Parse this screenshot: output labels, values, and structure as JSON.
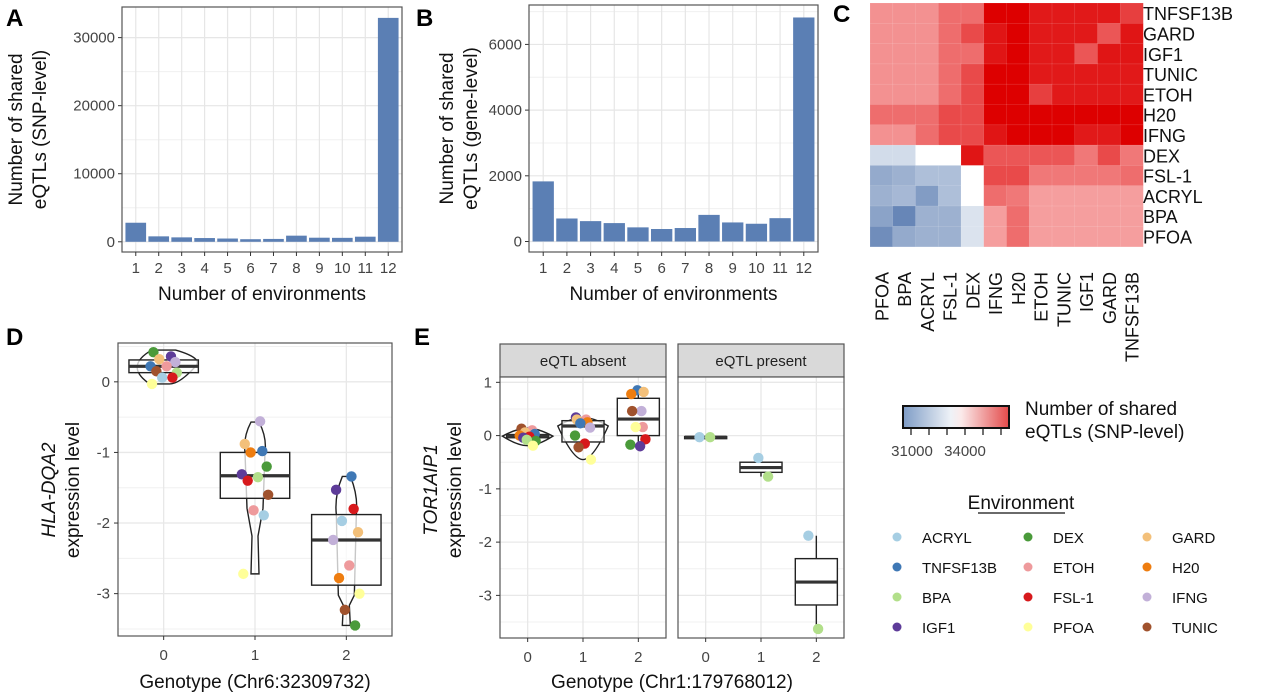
{
  "panels": {
    "A": "A",
    "B": "B",
    "C": "C",
    "D": "D",
    "E": "E"
  },
  "chart_data": [
    {
      "id": "A",
      "type": "bar",
      "title": "",
      "xlabel": "Number of environments",
      "ylabel_lines": [
        "Number of shared",
        "eQTLs (SNP-level)"
      ],
      "categories": [
        "1",
        "2",
        "3",
        "4",
        "5",
        "6",
        "7",
        "8",
        "9",
        "10",
        "11",
        "12"
      ],
      "values": [
        2800,
        800,
        650,
        550,
        480,
        380,
        420,
        900,
        600,
        580,
        750,
        32900
      ],
      "ylim": [
        -1500,
        34500
      ],
      "yticks": [
        0,
        10000,
        20000,
        30000
      ],
      "ytick_labels": [
        "0",
        "10000",
        "20000",
        "30000"
      ],
      "grid": true,
      "bar_color": "#5b7fb4"
    },
    {
      "id": "B",
      "type": "bar",
      "title": "",
      "xlabel": "Number of environments",
      "ylabel_lines": [
        "Number of shared",
        "eQTLs (gene-level)"
      ],
      "categories": [
        "1",
        "2",
        "3",
        "4",
        "5",
        "6",
        "7",
        "8",
        "9",
        "10",
        "11",
        "12"
      ],
      "values": [
        1830,
        700,
        620,
        560,
        430,
        380,
        410,
        810,
        580,
        540,
        710,
        6820
      ],
      "ylim": [
        -320,
        7200
      ],
      "yticks": [
        0,
        2000,
        4000,
        6000
      ],
      "ytick_labels": [
        "0",
        "2000",
        "4000",
        "6000"
      ],
      "grid": true,
      "bar_color": "#5b7fb4"
    },
    {
      "id": "C",
      "type": "heatmap",
      "title": "",
      "row_labels": [
        "TNFSF13B",
        "GARD",
        "IGF1",
        "TUNIC",
        "ETOH",
        "H20",
        "IFNG",
        "DEX",
        "FSL-1",
        "ACRYL",
        "BPA",
        "PFOA"
      ],
      "col_labels": [
        "PFOA",
        "BPA",
        "ACRYL",
        "FSL-1",
        "DEX",
        "IFNG",
        "H20",
        "ETOH",
        "TUNIC",
        "IGF1",
        "GARD",
        "TNFSF13B"
      ],
      "scale": "diverging: blue (low) - white - red (high)",
      "values_level": [
        [
          0.35,
          0.35,
          0.35,
          0.5,
          0.5,
          1.0,
          1.0,
          0.88,
          0.88,
          0.88,
          0.88,
          0.7
        ],
        [
          0.35,
          0.35,
          0.35,
          0.5,
          0.65,
          0.9,
          1.0,
          0.88,
          0.88,
          0.88,
          0.6,
          0.9
        ],
        [
          0.35,
          0.35,
          0.35,
          0.5,
          0.5,
          0.9,
          1.0,
          0.88,
          0.88,
          0.6,
          0.9,
          0.9
        ],
        [
          0.35,
          0.35,
          0.35,
          0.5,
          0.65,
          1.0,
          1.0,
          0.88,
          0.88,
          0.88,
          0.88,
          0.88
        ],
        [
          0.35,
          0.35,
          0.35,
          0.5,
          0.65,
          1.0,
          1.0,
          0.7,
          0.88,
          0.88,
          0.88,
          0.88
        ],
        [
          0.5,
          0.5,
          0.5,
          0.65,
          0.65,
          1.0,
          1.0,
          1.0,
          1.0,
          1.0,
          1.0,
          1.0
        ],
        [
          0.35,
          0.35,
          0.5,
          0.65,
          0.65,
          0.9,
          1.0,
          1.0,
          1.0,
          0.88,
          0.88,
          1.0
        ],
        [
          -0.25,
          -0.25,
          0,
          0,
          0.9,
          0.6,
          0.6,
          0.6,
          0.6,
          0.45,
          0.65,
          0.45
        ],
        [
          -0.6,
          -0.55,
          -0.45,
          -0.45,
          0,
          0.65,
          0.65,
          0.45,
          0.45,
          0.45,
          0.45,
          0.5
        ],
        [
          -0.55,
          -0.5,
          -0.7,
          -0.45,
          0,
          0.5,
          0.45,
          0.3,
          0.3,
          0.3,
          0.3,
          0.3
        ],
        [
          -0.65,
          -0.85,
          -0.55,
          -0.55,
          -0.2,
          0.3,
          0.5,
          0.3,
          0.3,
          0.3,
          0.3,
          0.3
        ],
        [
          -0.8,
          -0.6,
          -0.55,
          -0.55,
          -0.2,
          0.3,
          0.5,
          0.3,
          0.3,
          0.3,
          0.3,
          0.3
        ]
      ],
      "colorbar": {
        "title_lines": [
          "Number of shared",
          "eQTLs (SNP-level)"
        ],
        "tick_labels": [
          "31000",
          "34000"
        ]
      }
    },
    {
      "id": "D",
      "type": "scatter",
      "subtype": "violin+box+jitter",
      "xlabel": "Genotype (Chr6:32309732)",
      "ylabel_italic": "HLA-DQA2",
      "ylabel_plain": "expression level",
      "categories": [
        "0",
        "1",
        "2"
      ],
      "ylim": [
        -3.6,
        0.55
      ],
      "yticks": [
        0,
        -1,
        -2,
        -3
      ],
      "ytick_labels": [
        "0",
        "-1",
        "-2",
        "-3"
      ],
      "boxes": [
        {
          "x": "0",
          "q1": 0.13,
          "median": 0.22,
          "q3": 0.31,
          "min": -0.03,
          "max": 0.45
        },
        {
          "x": "1",
          "q1": -1.65,
          "median": -1.33,
          "q3": -1.0,
          "min": -2.72,
          "max": -0.57
        },
        {
          "x": "2",
          "q1": -2.88,
          "median": -2.24,
          "q3": -1.88,
          "min": -3.45,
          "max": -1.34
        }
      ],
      "points": [
        {
          "x": "0",
          "env": "DEX",
          "y": 0.42
        },
        {
          "x": "0",
          "env": "IGF1",
          "y": 0.36
        },
        {
          "x": "0",
          "env": "GARD",
          "y": 0.32
        },
        {
          "x": "0",
          "env": "IFNG",
          "y": 0.28
        },
        {
          "x": "0",
          "env": "TNFSF13B",
          "y": 0.22
        },
        {
          "x": "0",
          "env": "ETOH",
          "y": 0.22
        },
        {
          "x": "0",
          "env": "TUNIC",
          "y": 0.15
        },
        {
          "x": "0",
          "env": "BPA",
          "y": 0.13
        },
        {
          "x": "0",
          "env": "ACRYL",
          "y": 0.06
        },
        {
          "x": "0",
          "env": "FSL-1",
          "y": 0.06
        },
        {
          "x": "0",
          "env": "PFOA",
          "y": -0.03
        },
        {
          "x": "1",
          "env": "IFNG",
          "y": -0.56
        },
        {
          "x": "1",
          "env": "GARD",
          "y": -0.88
        },
        {
          "x": "1",
          "env": "TNFSF13B",
          "y": -0.98
        },
        {
          "x": "1",
          "env": "H20",
          "y": -1.0
        },
        {
          "x": "1",
          "env": "DEX",
          "y": -1.2
        },
        {
          "x": "1",
          "env": "IGF1",
          "y": -1.31
        },
        {
          "x": "1",
          "env": "BPA",
          "y": -1.35
        },
        {
          "x": "1",
          "env": "FSL-1",
          "y": -1.4
        },
        {
          "x": "1",
          "env": "TUNIC",
          "y": -1.6
        },
        {
          "x": "1",
          "env": "ETOH",
          "y": -1.82
        },
        {
          "x": "1",
          "env": "ACRYL",
          "y": -1.89
        },
        {
          "x": "1",
          "env": "PFOA",
          "y": -2.72
        },
        {
          "x": "2",
          "env": "TNFSF13B",
          "y": -1.34
        },
        {
          "x": "2",
          "env": "IGF1",
          "y": -1.53
        },
        {
          "x": "2",
          "env": "FSL-1",
          "y": -1.8
        },
        {
          "x": "2",
          "env": "ACRYL",
          "y": -1.97
        },
        {
          "x": "2",
          "env": "GARD",
          "y": -2.13
        },
        {
          "x": "2",
          "env": "IFNG",
          "y": -2.24
        },
        {
          "x": "2",
          "env": "ETOH",
          "y": -2.6
        },
        {
          "x": "2",
          "env": "H20",
          "y": -2.78
        },
        {
          "x": "2",
          "env": "PFOA",
          "y": -3.0
        },
        {
          "x": "2",
          "env": "TUNIC",
          "y": -3.23
        },
        {
          "x": "2",
          "env": "DEX",
          "y": -3.45
        }
      ]
    },
    {
      "id": "E",
      "type": "scatter",
      "subtype": "faceted box+jitter",
      "xlabel": "Genotype (Chr1:179768012)",
      "ylabel_italic": "TOR1AIP1",
      "ylabel_plain": "expression level",
      "categories": [
        "0",
        "1",
        "2"
      ],
      "ylim": [
        -3.8,
        1.1
      ],
      "yticks": [
        1,
        0,
        -1,
        -2,
        -3
      ],
      "ytick_labels": [
        "1",
        "0",
        "-1",
        "-2",
        "-3"
      ],
      "facets": [
        {
          "label": "eQTL absent",
          "boxes": [
            {
              "x": "0",
              "q1": -0.04,
              "median": -0.01,
              "q3": 0.02,
              "min": -0.19,
              "max": 0.14,
              "violin": true
            },
            {
              "x": "1",
              "q1": -0.12,
              "median": 0.18,
              "q3": 0.28,
              "min": -0.45,
              "max": 0.34,
              "violin": true
            },
            {
              "x": "2",
              "q1": 0.0,
              "median": 0.31,
              "q3": 0.7,
              "min": -0.2,
              "max": 0.85
            }
          ],
          "points": [
            {
              "x": "0",
              "env": "TUNIC",
              "y": 0.13
            },
            {
              "x": "0",
              "env": "ETOH",
              "y": 0.1
            },
            {
              "x": "0",
              "env": "GARD",
              "y": 0.06
            },
            {
              "x": "0",
              "env": "TNFSF13B",
              "y": 0.03
            },
            {
              "x": "0",
              "env": "H20",
              "y": 0.0
            },
            {
              "x": "0",
              "env": "FSL-1",
              "y": -0.02
            },
            {
              "x": "0",
              "env": "IGF1",
              "y": -0.04
            },
            {
              "x": "0",
              "env": "DEX",
              "y": -0.1
            },
            {
              "x": "0",
              "env": "BPA",
              "y": -0.08
            },
            {
              "x": "0",
              "env": "PFOA",
              "y": -0.19
            },
            {
              "x": "1",
              "env": "IGF1",
              "y": 0.34
            },
            {
              "x": "1",
              "env": "ETOH",
              "y": 0.3
            },
            {
              "x": "1",
              "env": "GARD",
              "y": 0.3
            },
            {
              "x": "1",
              "env": "H20",
              "y": 0.25
            },
            {
              "x": "1",
              "env": "TNFSF13B",
              "y": 0.23
            },
            {
              "x": "1",
              "env": "IFNG",
              "y": 0.15
            },
            {
              "x": "1",
              "env": "DEX",
              "y": 0.0
            },
            {
              "x": "1",
              "env": "FSL-1",
              "y": -0.15
            },
            {
              "x": "1",
              "env": "TUNIC",
              "y": -0.22
            },
            {
              "x": "1",
              "env": "PFOA",
              "y": -0.45
            },
            {
              "x": "2",
              "env": "TNFSF13B",
              "y": 0.85
            },
            {
              "x": "2",
              "env": "GARD",
              "y": 0.82
            },
            {
              "x": "2",
              "env": "H20",
              "y": 0.78
            },
            {
              "x": "2",
              "env": "IFNG",
              "y": 0.46
            },
            {
              "x": "2",
              "env": "TUNIC",
              "y": 0.46
            },
            {
              "x": "2",
              "env": "ETOH",
              "y": 0.16
            },
            {
              "x": "2",
              "env": "PFOA",
              "y": 0.16
            },
            {
              "x": "2",
              "env": "FSL-1",
              "y": -0.07
            },
            {
              "x": "2",
              "env": "DEX",
              "y": -0.17
            },
            {
              "x": "2",
              "env": "IGF1",
              "y": -0.2
            }
          ]
        },
        {
          "label": "eQTL present",
          "boxes": [
            {
              "x": "0",
              "q1": -0.04,
              "median": -0.03,
              "q3": -0.02,
              "min": -0.04,
              "max": -0.02
            },
            {
              "x": "1",
              "q1": -0.69,
              "median": -0.6,
              "q3": -0.5,
              "min": -0.77,
              "max": -0.42
            },
            {
              "x": "2",
              "q1": -3.18,
              "median": -2.75,
              "q3": -2.31,
              "min": -3.63,
              "max": -1.88
            }
          ],
          "points": [
            {
              "x": "0",
              "env": "ACRYL",
              "y": -0.03
            },
            {
              "x": "0",
              "env": "BPA",
              "y": -0.03
            },
            {
              "x": "1",
              "env": "ACRYL",
              "y": -0.42
            },
            {
              "x": "1",
              "env": "BPA",
              "y": -0.77
            },
            {
              "x": "2",
              "env": "ACRYL",
              "y": -1.88
            },
            {
              "x": "2",
              "env": "BPA",
              "y": -3.63
            }
          ]
        }
      ]
    }
  ],
  "legend": {
    "title": "Environment",
    "items": [
      {
        "label": "ACRYL",
        "color": "#a6cee3"
      },
      {
        "label": "TNFSF13B",
        "color": "#3f78b5"
      },
      {
        "label": "BPA",
        "color": "#b2df8a"
      },
      {
        "label": "IGF1",
        "color": "#5e3c99"
      },
      {
        "label": "DEX",
        "color": "#4a9a3a"
      },
      {
        "label": "ETOH",
        "color": "#ee9a9c"
      },
      {
        "label": "FSL-1",
        "color": "#d7191c"
      },
      {
        "label": "PFOA",
        "color": "#ffff99"
      },
      {
        "label": "GARD",
        "color": "#f3c07a"
      },
      {
        "label": "H20",
        "color": "#ee7d10"
      },
      {
        "label": "IFNG",
        "color": "#c2b0d8"
      },
      {
        "label": "TUNIC",
        "color": "#a0522d"
      }
    ]
  }
}
